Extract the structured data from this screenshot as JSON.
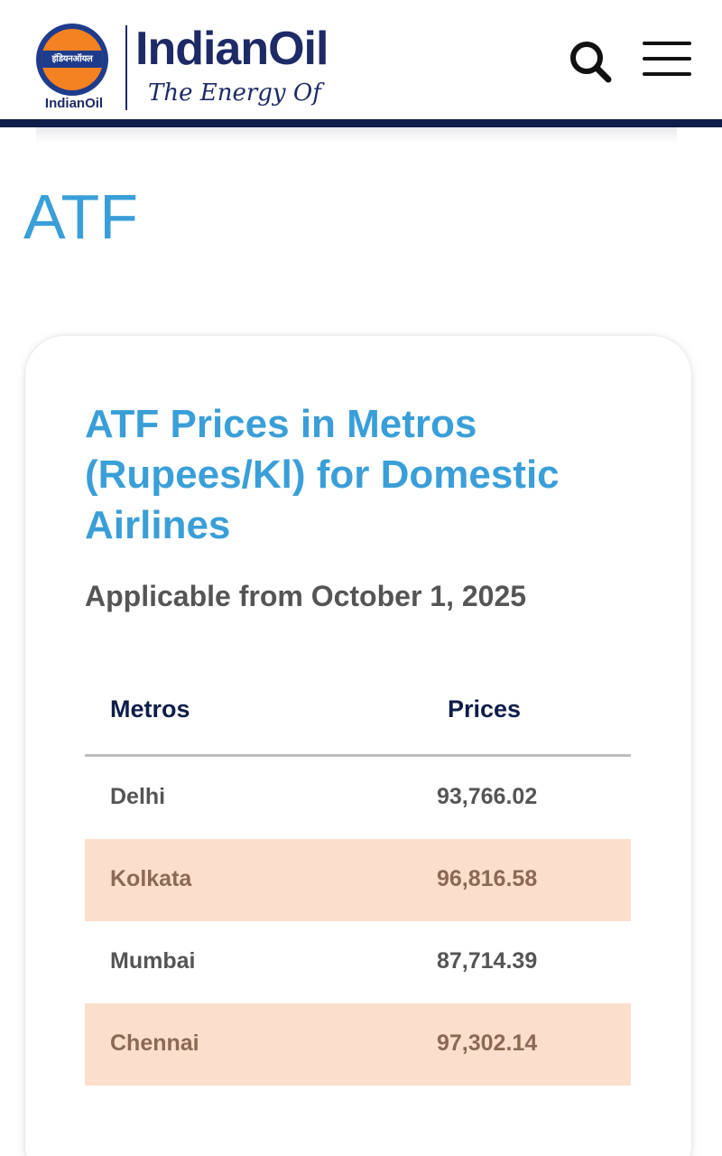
{
  "header": {
    "logo_band_text": "इंडियनऑयल",
    "logo_caption": "IndianOil",
    "brand_name": "IndianOil",
    "tagline": "The Energy Of",
    "colors": {
      "navy": "#1e2a66",
      "orange": "#f58220",
      "header_line": "#0f1d4a"
    },
    "icons": {
      "search": "search-icon",
      "menu": "hamburger-menu-icon"
    }
  },
  "page": {
    "title": "ATF",
    "accent_color": "#3a9fd8"
  },
  "card": {
    "title": "ATF Prices in Metros (Rupees/Kl) for Domestic Airlines",
    "subtitle": "Applicable from October 1, 2025",
    "table": {
      "headers": {
        "metro": "Metros",
        "price": "Prices"
      },
      "rows": [
        {
          "metro": "Delhi",
          "price": "93,766.02",
          "shaded": false
        },
        {
          "metro": "Kolkata",
          "price": "96,816.58",
          "shaded": true
        },
        {
          "metro": "Mumbai",
          "price": "87,714.39",
          "shaded": false
        },
        {
          "metro": "Chennai",
          "price": "97,302.14",
          "shaded": true
        }
      ],
      "shade_color": "#fcdecc"
    }
  }
}
